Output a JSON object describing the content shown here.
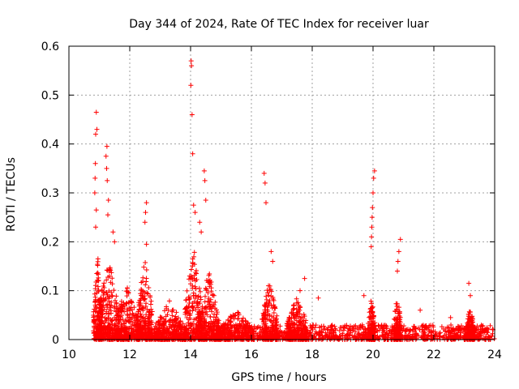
{
  "chart_data": {
    "type": "scatter",
    "title": "Day 344 of 2024, Rate Of TEC Index for receiver luar",
    "xlabel": "GPS time / hours",
    "ylabel": "ROTI / TECUs",
    "xlim": [
      10,
      24
    ],
    "ylim": [
      0,
      0.6
    ],
    "xticks": [
      10,
      12,
      14,
      16,
      18,
      20,
      22,
      24
    ],
    "yticks": [
      0,
      0.1,
      0.2,
      0.3,
      0.4,
      0.5,
      0.6
    ],
    "grid": true,
    "marker": "+",
    "color": "#ff0000",
    "series": [
      {
        "name": "ROTI",
        "peaks": [
          {
            "x": 10.9,
            "y": 0.465
          },
          {
            "x": 10.92,
            "y": 0.43
          },
          {
            "x": 10.88,
            "y": 0.42
          },
          {
            "x": 10.87,
            "y": 0.36
          },
          {
            "x": 10.86,
            "y": 0.33
          },
          {
            "x": 10.85,
            "y": 0.3
          },
          {
            "x": 10.9,
            "y": 0.265
          },
          {
            "x": 10.88,
            "y": 0.23
          },
          {
            "x": 11.25,
            "y": 0.395
          },
          {
            "x": 11.22,
            "y": 0.375
          },
          {
            "x": 11.24,
            "y": 0.35
          },
          {
            "x": 11.26,
            "y": 0.325
          },
          {
            "x": 11.3,
            "y": 0.285
          },
          {
            "x": 11.28,
            "y": 0.255
          },
          {
            "x": 11.45,
            "y": 0.22
          },
          {
            "x": 11.5,
            "y": 0.2
          },
          {
            "x": 12.55,
            "y": 0.28
          },
          {
            "x": 12.52,
            "y": 0.26
          },
          {
            "x": 12.5,
            "y": 0.24
          },
          {
            "x": 12.55,
            "y": 0.195
          },
          {
            "x": 14.02,
            "y": 0.57
          },
          {
            "x": 14.03,
            "y": 0.56
          },
          {
            "x": 14.01,
            "y": 0.52
          },
          {
            "x": 14.05,
            "y": 0.46
          },
          {
            "x": 14.07,
            "y": 0.38
          },
          {
            "x": 14.45,
            "y": 0.345
          },
          {
            "x": 14.47,
            "y": 0.325
          },
          {
            "x": 14.1,
            "y": 0.275
          },
          {
            "x": 14.15,
            "y": 0.26
          },
          {
            "x": 14.5,
            "y": 0.285
          },
          {
            "x": 14.3,
            "y": 0.24
          },
          {
            "x": 14.35,
            "y": 0.22
          },
          {
            "x": 16.42,
            "y": 0.34
          },
          {
            "x": 16.45,
            "y": 0.32
          },
          {
            "x": 16.48,
            "y": 0.28
          },
          {
            "x": 16.65,
            "y": 0.18
          },
          {
            "x": 16.7,
            "y": 0.16
          },
          {
            "x": 17.6,
            "y": 0.1
          },
          {
            "x": 17.75,
            "y": 0.125
          },
          {
            "x": 20.05,
            "y": 0.345
          },
          {
            "x": 20.02,
            "y": 0.33
          },
          {
            "x": 20.0,
            "y": 0.3
          },
          {
            "x": 19.98,
            "y": 0.27
          },
          {
            "x": 19.97,
            "y": 0.25
          },
          {
            "x": 19.96,
            "y": 0.23
          },
          {
            "x": 19.95,
            "y": 0.21
          },
          {
            "x": 19.94,
            "y": 0.19
          },
          {
            "x": 20.9,
            "y": 0.205
          },
          {
            "x": 20.85,
            "y": 0.18
          },
          {
            "x": 20.82,
            "y": 0.16
          },
          {
            "x": 20.8,
            "y": 0.14
          },
          {
            "x": 23.15,
            "y": 0.115
          },
          {
            "x": 23.2,
            "y": 0.09
          },
          {
            "x": 18.2,
            "y": 0.085
          },
          {
            "x": 19.7,
            "y": 0.09
          },
          {
            "x": 21.55,
            "y": 0.06
          },
          {
            "x": 22.55,
            "y": 0.045
          }
        ],
        "bursts": [
          {
            "center": 10.95,
            "width": 0.15,
            "peak": 0.17
          },
          {
            "center": 11.3,
            "width": 0.35,
            "peak": 0.17
          },
          {
            "center": 11.9,
            "width": 0.4,
            "peak": 0.11
          },
          {
            "center": 12.5,
            "width": 0.25,
            "peak": 0.17
          },
          {
            "center": 13.3,
            "width": 0.5,
            "peak": 0.08
          },
          {
            "center": 14.1,
            "width": 0.3,
            "peak": 0.19
          },
          {
            "center": 14.6,
            "width": 0.35,
            "peak": 0.14
          },
          {
            "center": 15.5,
            "width": 0.6,
            "peak": 0.06
          },
          {
            "center": 16.6,
            "width": 0.25,
            "peak": 0.13
          },
          {
            "center": 17.5,
            "width": 0.35,
            "peak": 0.09
          },
          {
            "center": 19.95,
            "width": 0.12,
            "peak": 0.09
          },
          {
            "center": 20.8,
            "width": 0.12,
            "peak": 0.1
          },
          {
            "center": 23.2,
            "width": 0.15,
            "peak": 0.07
          }
        ],
        "baseline": {
          "from": 10.85,
          "to": 24,
          "level": 0.03
        }
      }
    ]
  }
}
